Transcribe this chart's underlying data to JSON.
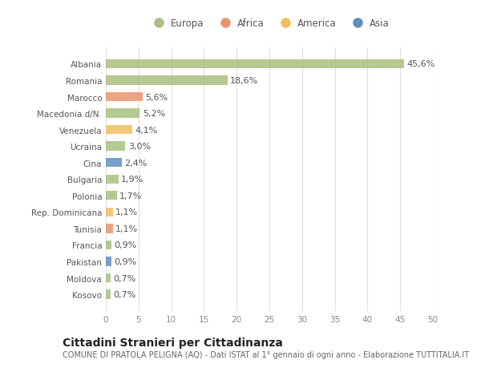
{
  "countries": [
    "Albania",
    "Romania",
    "Marocco",
    "Macedonia d/N.",
    "Venezuela",
    "Ucraina",
    "Cina",
    "Bulgaria",
    "Polonia",
    "Rep. Dominicana",
    "Tunisia",
    "Francia",
    "Pakistan",
    "Moldova",
    "Kosovo"
  ],
  "values": [
    45.6,
    18.6,
    5.6,
    5.2,
    4.1,
    3.0,
    2.4,
    1.9,
    1.7,
    1.1,
    1.1,
    0.9,
    0.9,
    0.7,
    0.7
  ],
  "labels": [
    "45,6%",
    "18,6%",
    "5,6%",
    "5,2%",
    "4,1%",
    "3,0%",
    "2,4%",
    "1,9%",
    "1,7%",
    "1,1%",
    "1,1%",
    "0,9%",
    "0,9%",
    "0,7%",
    "0,7%"
  ],
  "continents": [
    "Europa",
    "Europa",
    "Africa",
    "Europa",
    "America",
    "Europa",
    "Asia",
    "Europa",
    "Europa",
    "America",
    "Africa",
    "Europa",
    "Asia",
    "Europa",
    "Europa"
  ],
  "continent_colors": {
    "Europa": "#a8c080",
    "Africa": "#e8956d",
    "America": "#f0c060",
    "Asia": "#6090c0"
  },
  "legend_order": [
    "Europa",
    "Africa",
    "America",
    "Asia"
  ],
  "title": "Cittadini Stranieri per Cittadinanza",
  "subtitle": "COMUNE DI PRATOLA PELIGNA (AQ) - Dati ISTAT al 1° gennaio di ogni anno - Elaborazione TUTTITALIA.IT",
  "xlim": [
    0,
    50
  ],
  "xticks": [
    0,
    5,
    10,
    15,
    20,
    25,
    30,
    35,
    40,
    45,
    50
  ],
  "background_color": "#ffffff",
  "grid_color": "#e0e0e0",
  "bar_height": 0.55,
  "label_fontsize": 8,
  "title_fontsize": 10,
  "subtitle_fontsize": 7,
  "tick_fontsize": 7.5,
  "legend_fontsize": 8.5
}
